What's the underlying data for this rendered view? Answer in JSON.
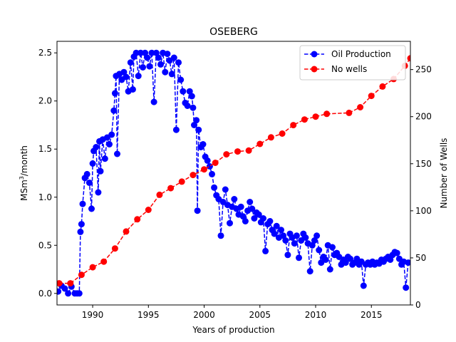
{
  "chart_data": {
    "type": "line",
    "title": "OSEBERG",
    "xlabel": "Years of production",
    "ylabel_left_main": "MSm",
    "ylabel_left_sup": "3",
    "ylabel_left_tail": "/month",
    "ylabel_right": "Number of Wells",
    "xlim": [
      1986.8,
      2018.5
    ],
    "ylim_left": [
      -0.12,
      2.62
    ],
    "ylim_right": [
      0,
      280
    ],
    "x_ticks": [
      1990,
      1995,
      2000,
      2005,
      2010,
      2015
    ],
    "y_left_ticks": [
      0.0,
      0.5,
      1.0,
      1.5,
      2.0,
      2.5
    ],
    "y_left_tick_labels": [
      "0.0",
      "0.5",
      "1.0",
      "1.5",
      "2.0",
      "2.5"
    ],
    "y_right_ticks": [
      0,
      50,
      100,
      150,
      200,
      250
    ],
    "legend_position": "top-right",
    "legend": [
      "Oil Production",
      "No wells"
    ],
    "colors": {
      "oil": "#0000ff",
      "wells": "#ff0000"
    },
    "series": [
      {
        "name": "Oil Production",
        "axis": "left",
        "style": "dashed-with-circles",
        "points": [
          [
            1986.9,
            0.02
          ],
          [
            1987.2,
            0.08
          ],
          [
            1987.5,
            0.05
          ],
          [
            1987.8,
            0.0
          ],
          [
            1988.1,
            0.07
          ],
          [
            1988.4,
            0.0
          ],
          [
            1988.6,
            0.0
          ],
          [
            1988.8,
            0.0
          ],
          [
            1988.9,
            0.64
          ],
          [
            1989.0,
            0.72
          ],
          [
            1989.1,
            0.93
          ],
          [
            1989.3,
            1.2
          ],
          [
            1989.5,
            1.24
          ],
          [
            1989.7,
            1.15
          ],
          [
            1989.9,
            0.88
          ],
          [
            1990.0,
            1.35
          ],
          [
            1990.1,
            1.48
          ],
          [
            1990.3,
            1.52
          ],
          [
            1990.5,
            1.05
          ],
          [
            1990.6,
            1.58
          ],
          [
            1990.7,
            1.27
          ],
          [
            1990.9,
            1.6
          ],
          [
            1991.1,
            1.4
          ],
          [
            1991.3,
            1.62
          ],
          [
            1991.5,
            1.55
          ],
          [
            1991.7,
            1.65
          ],
          [
            1991.9,
            1.9
          ],
          [
            1992.0,
            2.08
          ],
          [
            1992.1,
            2.26
          ],
          [
            1992.2,
            1.45
          ],
          [
            1992.4,
            2.28
          ],
          [
            1992.6,
            2.22
          ],
          [
            1992.8,
            2.3
          ],
          [
            1993.0,
            2.25
          ],
          [
            1993.2,
            2.1
          ],
          [
            1993.4,
            2.4
          ],
          [
            1993.6,
            2.12
          ],
          [
            1993.7,
            2.46
          ],
          [
            1993.9,
            2.5
          ],
          [
            1994.1,
            2.26
          ],
          [
            1994.3,
            2.5
          ],
          [
            1994.5,
            2.35
          ],
          [
            1994.7,
            2.5
          ],
          [
            1994.9,
            2.45
          ],
          [
            1995.1,
            2.36
          ],
          [
            1995.3,
            2.5
          ],
          [
            1995.5,
            1.99
          ],
          [
            1995.7,
            2.5
          ],
          [
            1995.9,
            2.45
          ],
          [
            1996.1,
            2.38
          ],
          [
            1996.3,
            2.5
          ],
          [
            1996.5,
            2.3
          ],
          [
            1996.7,
            2.49
          ],
          [
            1996.9,
            2.42
          ],
          [
            1997.1,
            2.28
          ],
          [
            1997.3,
            2.45
          ],
          [
            1997.5,
            1.7
          ],
          [
            1997.7,
            2.4
          ],
          [
            1997.9,
            2.22
          ],
          [
            1998.1,
            2.1
          ],
          [
            1998.3,
            1.98
          ],
          [
            1998.5,
            1.95
          ],
          [
            1998.7,
            2.1
          ],
          [
            1998.9,
            2.05
          ],
          [
            1999.0,
            1.93
          ],
          [
            1999.1,
            1.75
          ],
          [
            1999.3,
            1.8
          ],
          [
            1999.4,
            0.86
          ],
          [
            1999.5,
            1.7
          ],
          [
            1999.7,
            1.52
          ],
          [
            1999.9,
            1.55
          ],
          [
            2000.1,
            1.42
          ],
          [
            2000.3,
            1.38
          ],
          [
            2000.5,
            1.32
          ],
          [
            2000.7,
            1.24
          ],
          [
            2000.9,
            1.1
          ],
          [
            2001.1,
            1.02
          ],
          [
            2001.3,
            0.98
          ],
          [
            2001.5,
            0.6
          ],
          [
            2001.7,
            0.95
          ],
          [
            2001.9,
            1.08
          ],
          [
            2002.1,
            0.92
          ],
          [
            2002.3,
            0.73
          ],
          [
            2002.5,
            0.9
          ],
          [
            2002.7,
            0.98
          ],
          [
            2002.9,
            0.88
          ],
          [
            2003.1,
            0.82
          ],
          [
            2003.3,
            0.9
          ],
          [
            2003.5,
            0.8
          ],
          [
            2003.7,
            0.75
          ],
          [
            2003.9,
            0.86
          ],
          [
            2004.1,
            0.95
          ],
          [
            2004.3,
            0.88
          ],
          [
            2004.5,
            0.78
          ],
          [
            2004.7,
            0.84
          ],
          [
            2004.9,
            0.82
          ],
          [
            2005.1,
            0.74
          ],
          [
            2005.3,
            0.78
          ],
          [
            2005.5,
            0.44
          ],
          [
            2005.7,
            0.72
          ],
          [
            2005.9,
            0.75
          ],
          [
            2006.1,
            0.66
          ],
          [
            2006.3,
            0.62
          ],
          [
            2006.5,
            0.7
          ],
          [
            2006.7,
            0.58
          ],
          [
            2006.9,
            0.66
          ],
          [
            2007.1,
            0.6
          ],
          [
            2007.3,
            0.55
          ],
          [
            2007.5,
            0.4
          ],
          [
            2007.7,
            0.62
          ],
          [
            2007.9,
            0.58
          ],
          [
            2008.1,
            0.52
          ],
          [
            2008.3,
            0.6
          ],
          [
            2008.5,
            0.37
          ],
          [
            2008.7,
            0.55
          ],
          [
            2008.9,
            0.62
          ],
          [
            2009.1,
            0.58
          ],
          [
            2009.3,
            0.52
          ],
          [
            2009.5,
            0.23
          ],
          [
            2009.7,
            0.5
          ],
          [
            2009.9,
            0.55
          ],
          [
            2010.1,
            0.6
          ],
          [
            2010.3,
            0.45
          ],
          [
            2010.5,
            0.32
          ],
          [
            2010.7,
            0.38
          ],
          [
            2010.9,
            0.35
          ],
          [
            2011.1,
            0.5
          ],
          [
            2011.3,
            0.25
          ],
          [
            2011.5,
            0.48
          ],
          [
            2011.7,
            0.4
          ],
          [
            2011.9,
            0.42
          ],
          [
            2012.1,
            0.38
          ],
          [
            2012.3,
            0.3
          ],
          [
            2012.5,
            0.35
          ],
          [
            2012.7,
            0.32
          ],
          [
            2012.9,
            0.38
          ],
          [
            2013.1,
            0.36
          ],
          [
            2013.3,
            0.3
          ],
          [
            2013.5,
            0.32
          ],
          [
            2013.7,
            0.36
          ],
          [
            2013.9,
            0.3
          ],
          [
            2014.1,
            0.33
          ],
          [
            2014.3,
            0.08
          ],
          [
            2014.5,
            0.3
          ],
          [
            2014.7,
            0.32
          ],
          [
            2014.9,
            0.3
          ],
          [
            2015.1,
            0.33
          ],
          [
            2015.3,
            0.3
          ],
          [
            2015.5,
            0.32
          ],
          [
            2015.7,
            0.31
          ],
          [
            2015.9,
            0.35
          ],
          [
            2016.1,
            0.33
          ],
          [
            2016.3,
            0.36
          ],
          [
            2016.5,
            0.38
          ],
          [
            2016.7,
            0.35
          ],
          [
            2016.9,
            0.4
          ],
          [
            2017.1,
            0.43
          ],
          [
            2017.3,
            0.42
          ],
          [
            2017.5,
            0.36
          ],
          [
            2017.7,
            0.3
          ],
          [
            2017.9,
            0.33
          ],
          [
            2018.1,
            0.06
          ],
          [
            2018.3,
            0.32
          ]
        ]
      },
      {
        "name": "No wells",
        "axis": "right",
        "style": "dashed-with-circles",
        "points": [
          [
            1987.0,
            23
          ],
          [
            1988.0,
            23
          ],
          [
            1989.0,
            32
          ],
          [
            1990.0,
            40
          ],
          [
            1991.0,
            46
          ],
          [
            1992.0,
            60
          ],
          [
            1993.0,
            78
          ],
          [
            1994.0,
            91
          ],
          [
            1995.0,
            101
          ],
          [
            1996.0,
            117
          ],
          [
            1997.0,
            124
          ],
          [
            1998.0,
            131
          ],
          [
            1999.0,
            138
          ],
          [
            2000.0,
            144
          ],
          [
            2001.0,
            151
          ],
          [
            2002.0,
            160
          ],
          [
            2003.0,
            163
          ],
          [
            2004.0,
            164
          ],
          [
            2005.0,
            171
          ],
          [
            2006.0,
            178
          ],
          [
            2007.0,
            182
          ],
          [
            2008.0,
            191
          ],
          [
            2009.0,
            197
          ],
          [
            2010.0,
            200
          ],
          [
            2011.0,
            203
          ],
          [
            2013.0,
            204
          ],
          [
            2014.0,
            210
          ],
          [
            2015.0,
            222
          ],
          [
            2016.0,
            232
          ],
          [
            2017.0,
            240
          ],
          [
            2018.0,
            254
          ],
          [
            2018.5,
            262
          ]
        ]
      }
    ]
  }
}
